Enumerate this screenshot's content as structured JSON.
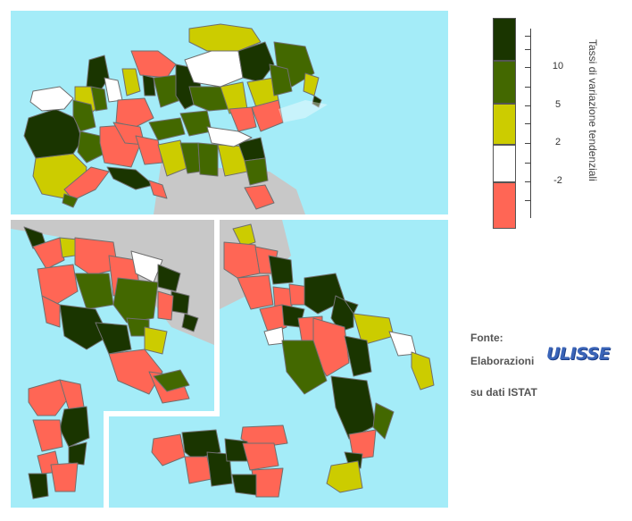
{
  "legend": {
    "title": "Tassi di variazione tendenziali",
    "bands": [
      {
        "color": "#1a3500"
      },
      {
        "color": "#436800"
      },
      {
        "color": "#cccc00"
      },
      {
        "color": "#ffffff"
      },
      {
        "color": "#ff6655"
      }
    ],
    "tick_labels": [
      "10",
      "5",
      "2",
      "-2"
    ]
  },
  "source": {
    "label": "Fonte:",
    "line1": "Elaborazioni",
    "brand": "ULISSE",
    "line2": "su dati ISTAT"
  },
  "colors": {
    "sea": "#a4ecf8",
    "outside_land": "#c8c8c8",
    "border": "#6f6f6f"
  }
}
